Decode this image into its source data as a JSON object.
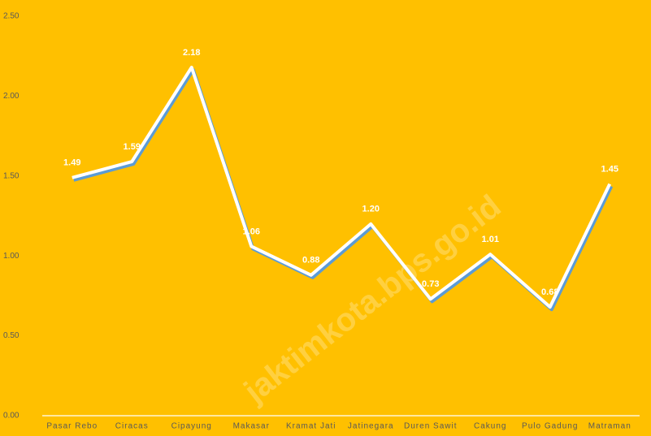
{
  "chart_data": {
    "type": "line",
    "categories": [
      "Pasar Rebo",
      "Ciracas",
      "Cipayung",
      "Makasar",
      "Kramat Jati",
      "Jatinegara",
      "Duren Sawit",
      "Cakung",
      "Pulo Gadung",
      "Matraman"
    ],
    "values": [
      1.49,
      1.59,
      2.18,
      1.06,
      0.88,
      1.2,
      0.73,
      1.01,
      0.68,
      1.45
    ],
    "value_labels": [
      "1.49",
      "1.59",
      "2.18",
      "1.06",
      "0.88",
      "1.20",
      "0.73",
      "1.01",
      "0.68",
      "1.45"
    ],
    "color": "#ffffff",
    "shadow_color": "#5b9bd5",
    "ylim": [
      0,
      2.5
    ],
    "yticks": [
      {
        "value": 0,
        "label": "0.00"
      },
      {
        "value": 0.5,
        "label": "0.50"
      },
      {
        "value": 1,
        "label": "1.00"
      },
      {
        "value": 1.5,
        "label": "1.50"
      },
      {
        "value": 2,
        "label": "2.00"
      },
      {
        "value": 2.5,
        "label": "2.50"
      }
    ],
    "watermark": "jaktimkota.bps.go.id"
  }
}
